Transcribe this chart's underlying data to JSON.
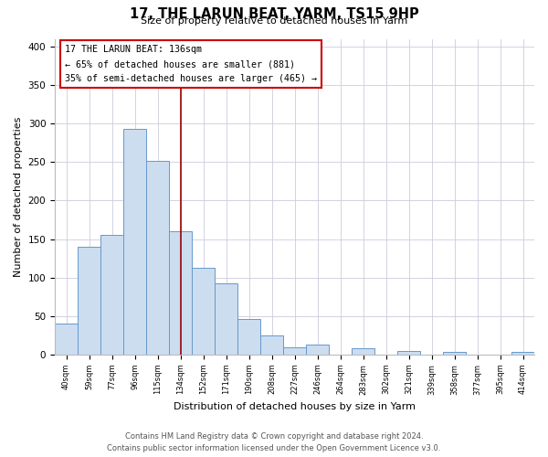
{
  "title": "17, THE LARUN BEAT, YARM, TS15 9HP",
  "subtitle": "Size of property relative to detached houses in Yarm",
  "xlabel": "Distribution of detached houses by size in Yarm",
  "ylabel": "Number of detached properties",
  "bar_labels": [
    "40sqm",
    "59sqm",
    "77sqm",
    "96sqm",
    "115sqm",
    "134sqm",
    "152sqm",
    "171sqm",
    "190sqm",
    "208sqm",
    "227sqm",
    "246sqm",
    "264sqm",
    "283sqm",
    "302sqm",
    "321sqm",
    "339sqm",
    "358sqm",
    "377sqm",
    "395sqm",
    "414sqm"
  ],
  "bar_values": [
    40,
    140,
    155,
    293,
    251,
    160,
    113,
    92,
    46,
    25,
    10,
    13,
    0,
    8,
    0,
    5,
    0,
    3,
    0,
    0,
    3
  ],
  "bar_color": "#ccddf0",
  "bar_edge_color": "#6699cc",
  "vline_index": 5,
  "vline_color": "#990000",
  "annotation_title": "17 THE LARUN BEAT: 136sqm",
  "annotation_line1": "← 65% of detached houses are smaller (881)",
  "annotation_line2": "35% of semi-detached houses are larger (465) →",
  "annotation_box_color": "#ffffff",
  "annotation_box_edge": "#cc0000",
  "ylim": [
    0,
    410
  ],
  "yticks": [
    0,
    50,
    100,
    150,
    200,
    250,
    300,
    350,
    400
  ],
  "footer_line1": "Contains HM Land Registry data © Crown copyright and database right 2024.",
  "footer_line2": "Contains public sector information licensed under the Open Government Licence v3.0.",
  "bg_color": "#ffffff",
  "grid_color": "#ccccdd"
}
